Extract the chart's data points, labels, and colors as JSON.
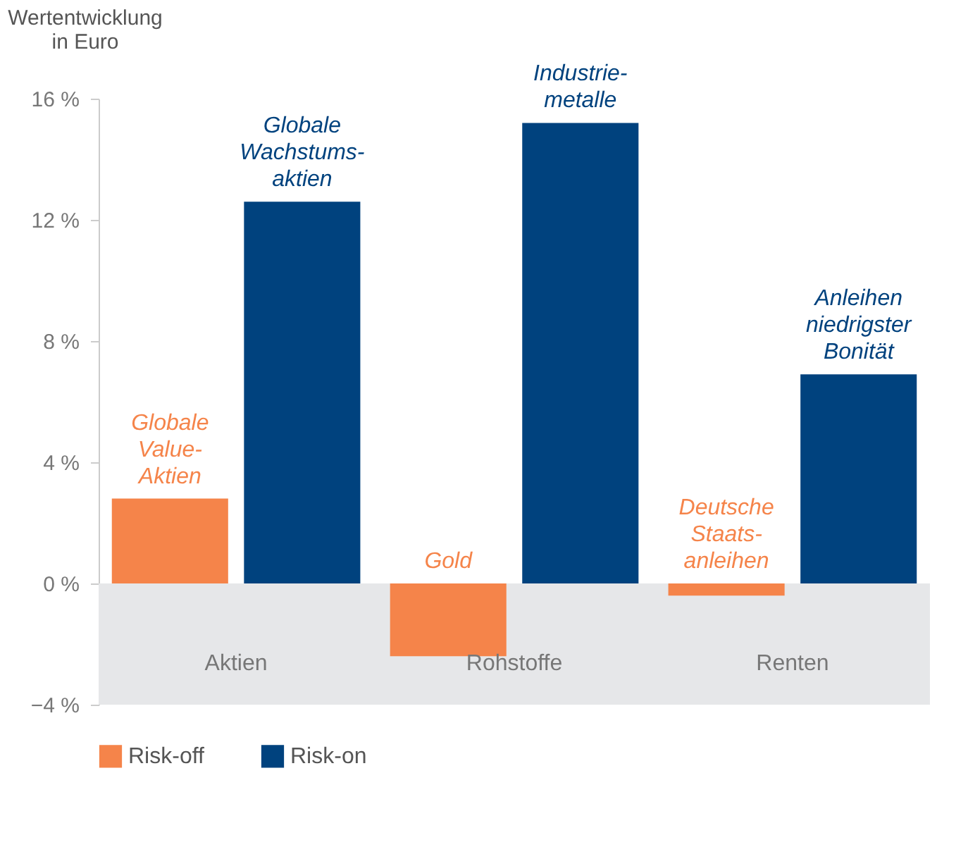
{
  "chart_data": {
    "type": "bar",
    "ylabel": "Wertentwicklung\nin Euro",
    "categories": [
      "Aktien",
      "Rohstoffe",
      "Renten"
    ],
    "series": [
      {
        "name": "Risk-off",
        "color": "#f5844a",
        "values": [
          2.8,
          -2.4,
          -0.4
        ],
        "value_labels": [
          "Globale\nValue-\nAktien",
          "Gold",
          "Deutsche\nStaats-\nanleihen"
        ]
      },
      {
        "name": "Risk-on",
        "color": "#00427e",
        "values": [
          12.6,
          15.2,
          6.9
        ],
        "value_labels": [
          "Globale\nWachstums-\naktien",
          "Industrie-\nmetalle",
          "Anleihen\nniedrigster\nBonität"
        ]
      }
    ],
    "ylim": [
      -4,
      16
    ],
    "yticks": [
      {
        "value": -4,
        "label": "−4 %"
      },
      {
        "value": 0,
        "label": "0 %"
      },
      {
        "value": 4,
        "label": "4 %"
      },
      {
        "value": 8,
        "label": "8 %"
      },
      {
        "value": 12,
        "label": "12 %"
      },
      {
        "value": 16,
        "label": "16 %"
      }
    ],
    "bands": [
      {
        "axis": "y",
        "from": -4,
        "to": 0,
        "color": "#e6e7e9"
      }
    ],
    "grid": false,
    "legend": "bottom"
  }
}
